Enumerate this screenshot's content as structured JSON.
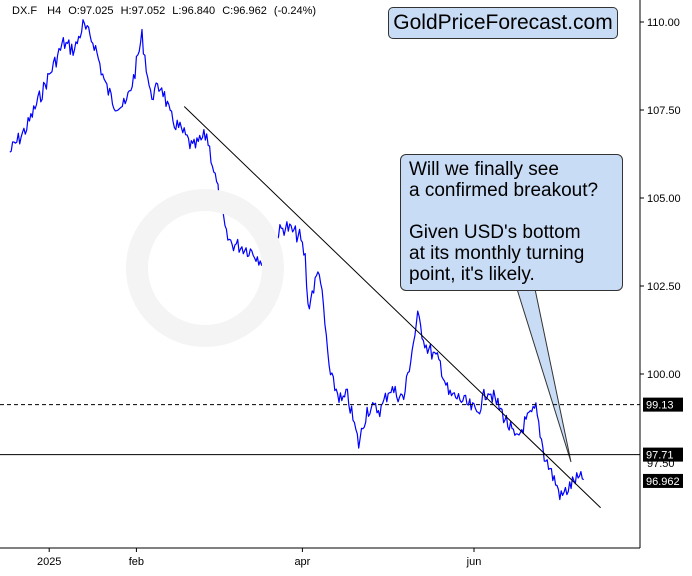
{
  "header": {
    "symbol": "DX.F",
    "timeframe": "H4",
    "open": "O:97.025",
    "high": "H:97.052",
    "low": "L:96.840",
    "close": "C:96.962",
    "change": "(-0.24%)"
  },
  "brand": "GoldPriceForecast.com",
  "callout": {
    "text1": "Will we finally see\na confirmed breakout?",
    "text2": "Given USD's bottom\nat its monthly turning\npoint, it's likely."
  },
  "chart_data": {
    "type": "line",
    "series": [
      {
        "color": "#0000ff",
        "x": [
          "2024-12-18",
          "2024-12-24",
          "2024-12-31",
          "2025-01-06",
          "2025-01-10",
          "2025-01-13",
          "2025-01-17",
          "2025-01-21",
          "2025-01-24",
          "2025-01-28",
          "2025-01-31",
          "2025-02-03",
          "2025-02-06",
          "2025-02-10",
          "2025-02-13",
          "2025-02-18",
          "2025-02-21",
          "2025-02-26",
          "2025-03-03",
          "2025-03-05",
          "2025-03-07",
          "2025-03-11",
          "2025-03-14",
          "2025-03-18",
          "2025-03-21",
          "2025-03-26",
          "2025-03-31",
          "2025-04-02",
          "2025-04-03",
          "2025-04-07",
          "2025-04-10",
          "2025-04-11",
          "2025-04-15",
          "2025-04-17",
          "2025-04-21",
          "2025-04-24",
          "2025-04-29",
          "2025-05-02",
          "2025-05-07",
          "2025-05-12",
          "2025-05-15",
          "2025-05-20",
          "2025-05-23",
          "2025-05-27",
          "2025-06-02",
          "2025-06-06",
          "2025-06-11",
          "2025-06-16",
          "2025-06-19",
          "2025-06-23",
          "2025-06-26",
          "2025-06-30",
          "2025-07-02",
          "2025-07-07",
          "2025-07-10"
        ],
        "values": [
          106.3,
          107.0,
          108.3,
          109.4,
          109.2,
          109.9,
          109.4,
          108.2,
          107.7,
          107.6,
          108.4,
          109.6,
          107.9,
          108.2,
          107.3,
          106.8,
          106.4,
          106.8,
          104.8,
          103.9,
          103.7,
          103.6,
          103.5,
          103.2,
          103.8,
          104.2,
          103.9,
          103.3,
          101.9,
          103.0,
          100.6,
          99.9,
          99.2,
          99.4,
          98.0,
          99.0,
          99.0,
          99.6,
          99.3,
          101.6,
          100.8,
          100.3,
          99.4,
          99.3,
          98.9,
          99.6,
          98.9,
          98.1,
          98.6,
          99.0,
          97.7,
          96.9,
          96.5,
          97.0,
          97.0
        ]
      }
    ],
    "x_ticks": [
      "2025",
      "feb",
      "apr",
      "jun"
    ],
    "y_ticks": [
      "110.00",
      "107.50",
      "105.00",
      "102.50",
      "100.00"
    ],
    "ylim": [
      94.3,
      110.5
    ],
    "grid": false,
    "trendline": {
      "x": [
        "2025-02-18",
        "2025-07-16"
      ],
      "values": [
        107.6,
        96.2
      ]
    },
    "horizontal_levels": [
      {
        "value": 99.13,
        "label": "99.13",
        "style": "dashed"
      },
      {
        "value": 97.71,
        "label": "97.71",
        "style": "solid"
      }
    ],
    "level_label_hidden": "97.50",
    "last_price": {
      "value": 96.962,
      "label": "96.962"
    }
  }
}
